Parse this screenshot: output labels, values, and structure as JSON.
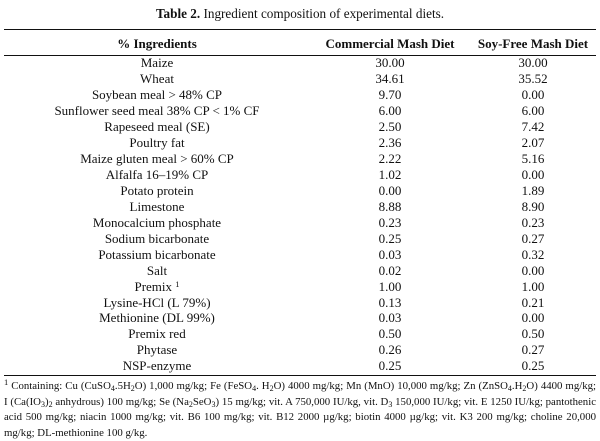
{
  "caption": {
    "label": "Table 2.",
    "text": "Ingredient composition of experimental diets."
  },
  "table": {
    "headers": [
      "% Ingredients",
      "Commercial Mash Diet",
      "Soy-Free Mash Diet"
    ],
    "rows": [
      {
        "name": "Maize",
        "commercial": "30.00",
        "soyfree": "30.00"
      },
      {
        "name": "Wheat",
        "commercial": "34.61",
        "soyfree": "35.52"
      },
      {
        "name": "Soybean meal > 48% CP",
        "commercial": "9.70",
        "soyfree": "0.00"
      },
      {
        "name": "Sunflower seed meal 38% CP < 1% CF",
        "commercial": "6.00",
        "soyfree": "6.00"
      },
      {
        "name": "Rapeseed meal (SE)",
        "commercial": "2.50",
        "soyfree": "7.42"
      },
      {
        "name": "Poultry fat",
        "commercial": "2.36",
        "soyfree": "2.07"
      },
      {
        "name": "Maize gluten meal > 60% CP",
        "commercial": "2.22",
        "soyfree": "5.16"
      },
      {
        "name": "Alfalfa 16–19% CP",
        "commercial": "1.02",
        "soyfree": "0.00"
      },
      {
        "name": "Potato protein",
        "commercial": "0.00",
        "soyfree": "1.89"
      },
      {
        "name": "Limestone",
        "commercial": "8.88",
        "soyfree": "8.90"
      },
      {
        "name": "Monocalcium phosphate",
        "commercial": "0.23",
        "soyfree": "0.23"
      },
      {
        "name": "Sodium bicarbonate",
        "commercial": "0.25",
        "soyfree": "0.27"
      },
      {
        "name": "Potassium bicarbonate",
        "commercial": "0.03",
        "soyfree": "0.32"
      },
      {
        "name": "Salt",
        "commercial": "0.02",
        "soyfree": "0.00"
      },
      {
        "name": "Premix",
        "sup": "1",
        "commercial": "1.00",
        "soyfree": "1.00"
      },
      {
        "name": "Lysine-HCl (L 79%)",
        "commercial": "0.13",
        "soyfree": "0.21"
      },
      {
        "name": "Methionine (DL 99%)",
        "commercial": "0.03",
        "soyfree": "0.00"
      },
      {
        "name": "Premix red",
        "commercial": "0.50",
        "soyfree": "0.50"
      },
      {
        "name": "Phytase",
        "commercial": "0.26",
        "soyfree": "0.27"
      },
      {
        "name": "NSP-enzyme",
        "commercial": "0.25",
        "soyfree": "0.25"
      }
    ]
  },
  "footnote": {
    "marker": "1",
    "lead": "Containing: Cu (CuSO",
    "f1": "4",
    "t1": ".5H",
    "f2": "2",
    "t2": "O) 1,000 mg/kg; Fe (FeSO",
    "f3": "4",
    "t3": ". H",
    "f4": "2",
    "t4": "O) 4000 mg/kg; Mn (MnO) 10,000 mg/kg; Zn (ZnSO",
    "f5": "4",
    "t5": ".H",
    "f6": "2",
    "t6": "O) 4400 mg/kg; I (Ca(IO",
    "f7": "3",
    "t7": ")",
    "f8": "2",
    "t8": " anhydrous) 100 mg/kg; Se (Na",
    "f9": "2",
    "t9": "SeO",
    "f10": "3",
    "t10": ") 15 mg/kg; vit. A 750,000 IU/kg, vit. D",
    "f11": "3",
    "t11": " 150,000 IU/kg; vit. E 1250 IU/kg; pantothenic acid 500 mg/kg; niacin 1000 mg/kg; vit. B6 100 mg/kg; vit. B12 2000 µg/kg; biotin 4000 µg/kg; vit. K3 200 mg/kg; choline 20,000 mg/kg; DL-methionine 100 g/kg."
  }
}
